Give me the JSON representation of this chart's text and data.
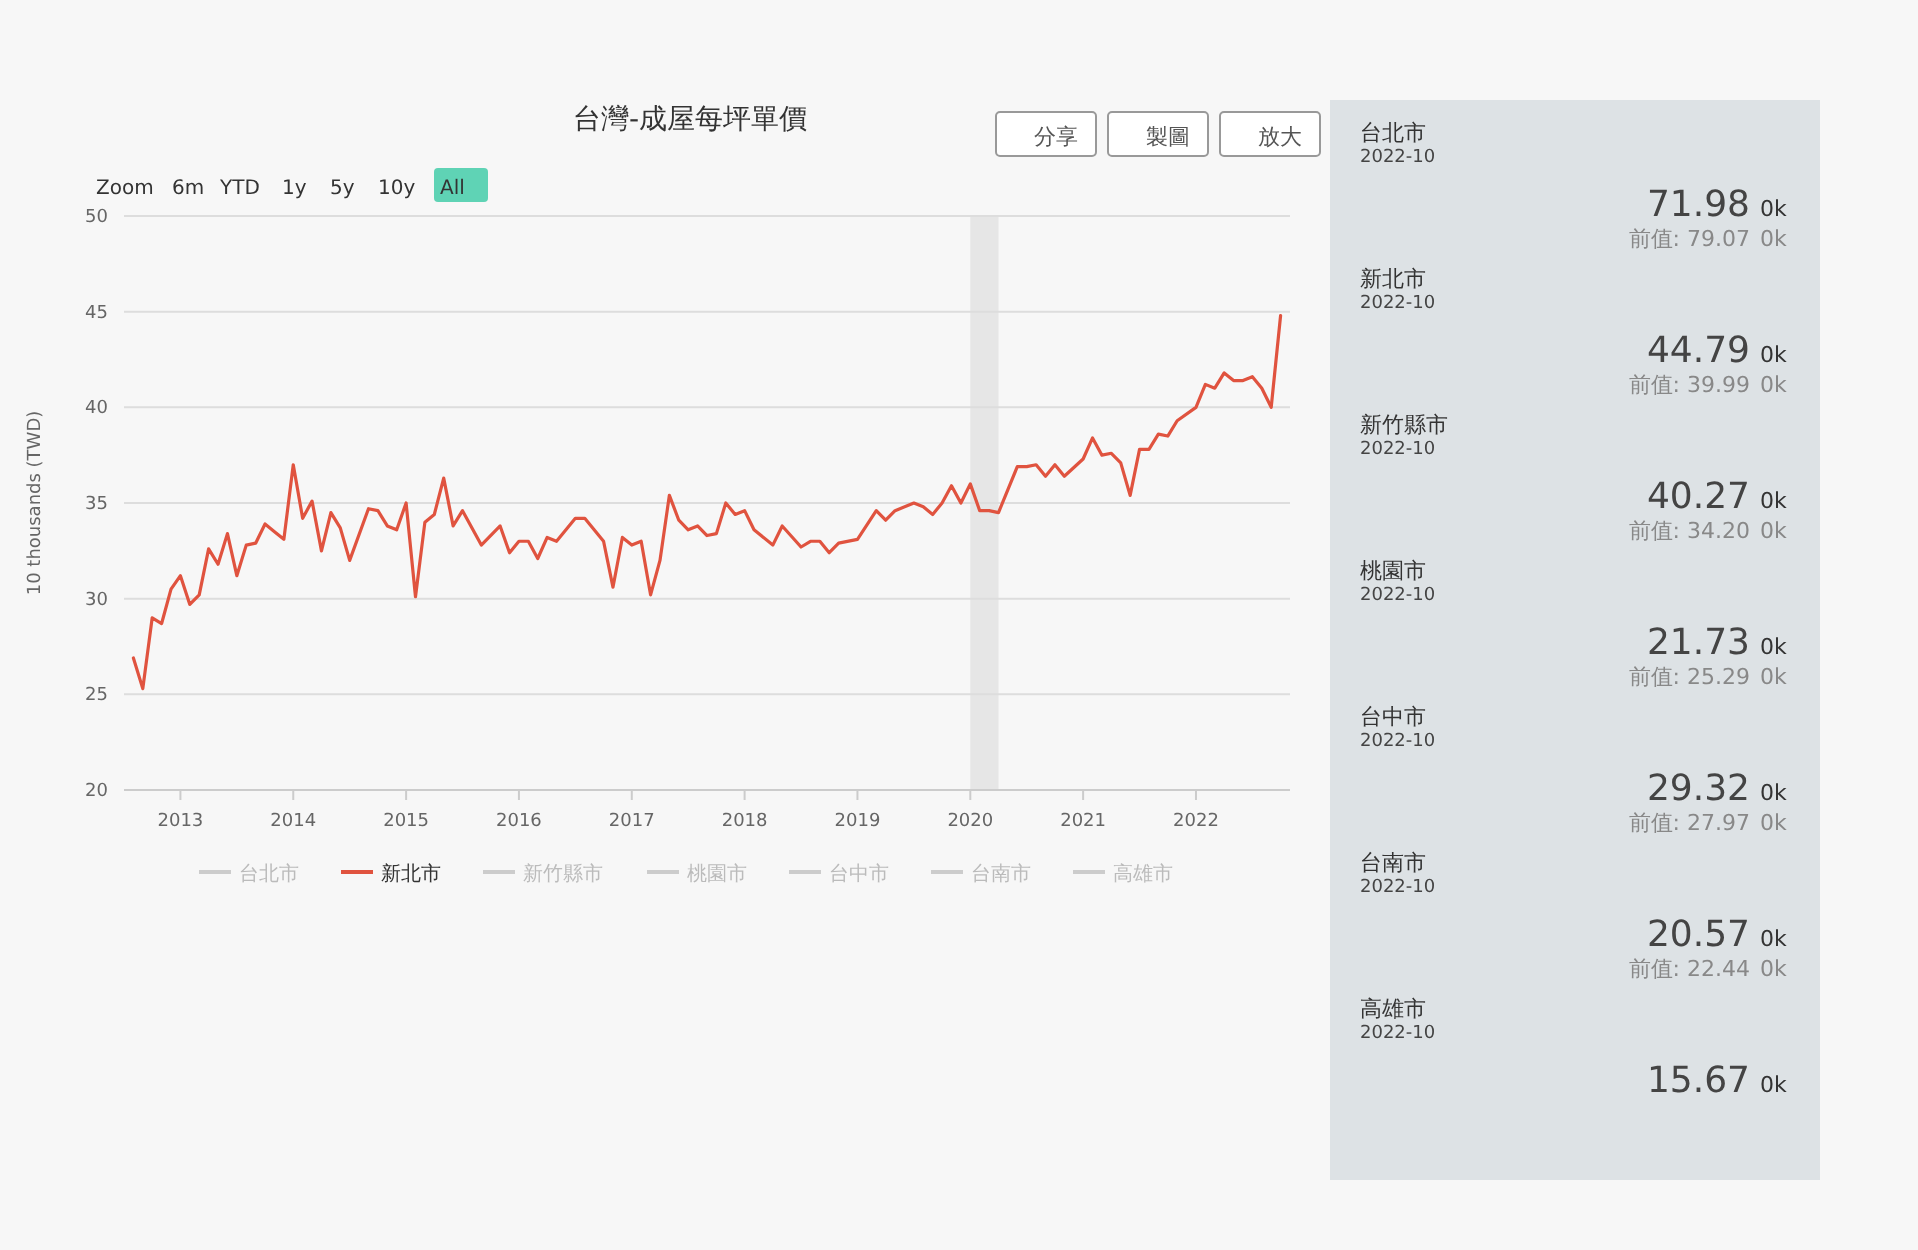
{
  "chart_data": [
    {
      "type": "line",
      "title": "台灣-成屋每坪單價",
      "ylabel": "10 thousands (TWD)",
      "annotations": [
        "Zoom",
        "6m",
        "YTD",
        "1y",
        "5y",
        "10y",
        "All",
        "分享",
        "製圖",
        "放大"
      ],
      "x": [
        "2012-08",
        "2012-09",
        "2012-10",
        "2012-11",
        "2012-12",
        "2013-01",
        "2013-02",
        "2013-03",
        "2013-04",
        "2013-05",
        "2013-06",
        "2013-07",
        "2013-08",
        "2013-09",
        "2013-10",
        "2013-11",
        "2013-12",
        "2014-01",
        "2014-02",
        "2014-03",
        "2014-04",
        "2014-05",
        "2014-06",
        "2014-07",
        "2014-09",
        "2014-10",
        "2014-11",
        "2014-12",
        "2015-01",
        "2015-02",
        "2015-03",
        "2015-04",
        "2015-05",
        "2015-06",
        "2015-07",
        "2015-09",
        "2015-11",
        "2015-12",
        "2016-01",
        "2016-02",
        "2016-03",
        "2016-04",
        "2016-05",
        "2016-07",
        "2016-08",
        "2016-10",
        "2016-11",
        "2016-12",
        "2017-01",
        "2017-02",
        "2017-03",
        "2017-04",
        "2017-05",
        "2017-06",
        "2017-07",
        "2017-08",
        "2017-09",
        "2017-10",
        "2017-11",
        "2017-12",
        "2018-01",
        "2018-02",
        "2018-04",
        "2018-05",
        "2018-07",
        "2018-08",
        "2018-09",
        "2018-10",
        "2018-11",
        "2019-01",
        "2019-03",
        "2019-04",
        "2019-05",
        "2019-07",
        "2019-08",
        "2019-09",
        "2019-10",
        "2019-11",
        "2019-12",
        "2020-01",
        "2020-02",
        "2020-03",
        "2020-04",
        "2020-06",
        "2020-07",
        "2020-08",
        "2020-09",
        "2020-10",
        "2020-11",
        "2021-01",
        "2021-02",
        "2021-03",
        "2021-04",
        "2021-05",
        "2021-06",
        "2021-07",
        "2021-08",
        "2021-09",
        "2021-10",
        "2021-11",
        "2022-01",
        "2022-02",
        "2022-03",
        "2022-04",
        "2022-05",
        "2022-06",
        "2022-07",
        "2022-08",
        "2022-09",
        "2022-10"
      ],
      "series": [
        {
          "name": "台北市",
          "color": "#cccccc",
          "values": [
            null,
            null,
            null,
            null,
            null,
            null,
            null,
            null,
            null,
            null,
            null,
            null,
            null,
            null,
            null,
            null,
            null,
            null,
            null,
            null,
            null,
            null,
            null,
            null,
            null,
            null,
            null,
            null,
            null,
            null,
            null,
            null,
            null,
            null,
            null,
            null,
            null,
            null,
            null,
            null,
            null,
            null,
            null,
            null,
            null,
            null,
            null,
            null,
            null,
            null,
            null,
            null,
            null,
            null,
            null,
            null,
            null,
            null,
            null,
            null,
            null,
            null,
            null,
            null,
            null,
            null,
            null,
            null,
            null,
            null,
            null,
            null,
            null,
            null,
            null,
            null,
            null,
            null,
            null,
            null,
            null,
            null,
            null,
            null,
            null,
            null,
            null,
            null,
            null,
            null,
            null,
            null,
            null,
            null,
            null,
            null,
            null,
            null,
            null,
            null,
            null,
            null,
            null,
            null,
            null,
            null,
            null,
            null,
            null,
            null
          ]
        },
        {
          "name": "新北市",
          "color": "#e0533f",
          "values": [
            26.9,
            25.3,
            29.0,
            28.7,
            30.5,
            31.2,
            29.7,
            30.2,
            32.6,
            31.8,
            33.4,
            31.2,
            32.8,
            32.9,
            33.9,
            33.5,
            33.1,
            37.0,
            34.2,
            35.1,
            32.5,
            34.5,
            33.7,
            32.0,
            34.7,
            34.6,
            33.8,
            33.6,
            35.0,
            30.1,
            34.0,
            34.4,
            36.3,
            33.8,
            34.6,
            32.8,
            33.8,
            32.4,
            33.0,
            33.0,
            32.1,
            33.2,
            33.0,
            34.2,
            34.2,
            33.0,
            30.6,
            33.2,
            32.8,
            33.0,
            30.2,
            32.0,
            35.4,
            34.1,
            33.6,
            33.8,
            33.3,
            33.4,
            35.0,
            34.4,
            34.6,
            33.6,
            32.8,
            33.8,
            32.7,
            33.0,
            33.0,
            32.4,
            32.9,
            33.1,
            34.6,
            34.1,
            34.6,
            35.0,
            34.8,
            34.4,
            35.0,
            35.9,
            35.0,
            36.0,
            34.6,
            34.6,
            34.5,
            36.9,
            36.9,
            37.0,
            36.4,
            37.0,
            36.4,
            37.3,
            38.4,
            37.5,
            37.6,
            37.1,
            35.4,
            37.8,
            37.8,
            38.6,
            38.5,
            39.3,
            40.0,
            41.2,
            41.0,
            41.8,
            41.4,
            41.4,
            41.6,
            41.0,
            40.0,
            44.8
          ]
        },
        {
          "name": "新竹縣市",
          "color": "#cccccc",
          "values": [
            null,
            null,
            null,
            null,
            null,
            null,
            null,
            null,
            null,
            null,
            null,
            null,
            null,
            null,
            null,
            null,
            null,
            null,
            null,
            null,
            null,
            null,
            null,
            null,
            null,
            null,
            null,
            null,
            null,
            null,
            null,
            null,
            null,
            null,
            null,
            null,
            null,
            null,
            null,
            null,
            null,
            null,
            null,
            null,
            null,
            null,
            null,
            null,
            null,
            null,
            null,
            null,
            null,
            null,
            null,
            null,
            null,
            null,
            null,
            null,
            null,
            null,
            null,
            null,
            null,
            null,
            null,
            null,
            null,
            null,
            null,
            null,
            null,
            null,
            null,
            null,
            null,
            null,
            null,
            null,
            null,
            null,
            null,
            null,
            null,
            null,
            null,
            null,
            null,
            null,
            null,
            null,
            null,
            null,
            null,
            null,
            null,
            null,
            null,
            null,
            null,
            null,
            null,
            null,
            null,
            null,
            null,
            null,
            null,
            null
          ]
        },
        {
          "name": "桃園市",
          "color": "#cccccc",
          "values": [
            null,
            null,
            null,
            null,
            null,
            null,
            null,
            null,
            null,
            null,
            null,
            null,
            null,
            null,
            null,
            null,
            null,
            null,
            null,
            null,
            null,
            null,
            null,
            null,
            null,
            null,
            null,
            null,
            null,
            null,
            null,
            null,
            null,
            null,
            null,
            null,
            null,
            null,
            null,
            null,
            null,
            null,
            null,
            null,
            null,
            null,
            null,
            null,
            null,
            null,
            null,
            null,
            null,
            null,
            null,
            null,
            null,
            null,
            null,
            null,
            null,
            null,
            null,
            null,
            null,
            null,
            null,
            null,
            null,
            null,
            null,
            null,
            null,
            null,
            null,
            null,
            null,
            null,
            null,
            null,
            null,
            null,
            null,
            null,
            null,
            null,
            null,
            null,
            null,
            null,
            null,
            null,
            null,
            null,
            null,
            null,
            null,
            null,
            null,
            null,
            null,
            null,
            null,
            null,
            null,
            null,
            null,
            null,
            null,
            null
          ]
        },
        {
          "name": "台中市",
          "color": "#cccccc",
          "values": [
            null,
            null,
            null,
            null,
            null,
            null,
            null,
            null,
            null,
            null,
            null,
            null,
            null,
            null,
            null,
            null,
            null,
            null,
            null,
            null,
            null,
            null,
            null,
            null,
            null,
            null,
            null,
            null,
            null,
            null,
            null,
            null,
            null,
            null,
            null,
            null,
            null,
            null,
            null,
            null,
            null,
            null,
            null,
            null,
            null,
            null,
            null,
            null,
            null,
            null,
            null,
            null,
            null,
            null,
            null,
            null,
            null,
            null,
            null,
            null,
            null,
            null,
            null,
            null,
            null,
            null,
            null,
            null,
            null,
            null,
            null,
            null,
            null,
            null,
            null,
            null,
            null,
            null,
            null,
            null,
            null,
            null,
            null,
            null,
            null,
            null,
            null,
            null,
            null,
            null,
            null,
            null,
            null,
            null,
            null,
            null,
            null,
            null,
            null,
            null,
            null,
            null,
            null,
            null,
            null,
            null,
            null,
            null,
            null,
            null
          ]
        },
        {
          "name": "台南市",
          "color": "#cccccc",
          "values": [
            null,
            null,
            null,
            null,
            null,
            null,
            null,
            null,
            null,
            null,
            null,
            null,
            null,
            null,
            null,
            null,
            null,
            null,
            null,
            null,
            null,
            null,
            null,
            null,
            null,
            null,
            null,
            null,
            null,
            null,
            null,
            null,
            null,
            null,
            null,
            null,
            null,
            null,
            null,
            null,
            null,
            null,
            null,
            null,
            null,
            null,
            null,
            null,
            null,
            null,
            null,
            null,
            null,
            null,
            null,
            null,
            null,
            null,
            null,
            null,
            null,
            null,
            null,
            null,
            null,
            null,
            null,
            null,
            null,
            null,
            null,
            null,
            null,
            null,
            null,
            null,
            null,
            null,
            null,
            null,
            null,
            null,
            null,
            null,
            null,
            null,
            null,
            null,
            null,
            null,
            null,
            null,
            null,
            null,
            null,
            null,
            null,
            null,
            null,
            null,
            null,
            null,
            null,
            null,
            null,
            null,
            null,
            null,
            null,
            null
          ]
        },
        {
          "name": "高雄市",
          "color": "#cccccc",
          "values": [
            null,
            null,
            null,
            null,
            null,
            null,
            null,
            null,
            null,
            null,
            null,
            null,
            null,
            null,
            null,
            null,
            null,
            null,
            null,
            null,
            null,
            null,
            null,
            null,
            null,
            null,
            null,
            null,
            null,
            null,
            null,
            null,
            null,
            null,
            null,
            null,
            null,
            null,
            null,
            null,
            null,
            null,
            null,
            null,
            null,
            null,
            null,
            null,
            null,
            null,
            null,
            null,
            null,
            null,
            null,
            null,
            null,
            null,
            null,
            null,
            null,
            null,
            null,
            null,
            null,
            null,
            null,
            null,
            null,
            null,
            null,
            null,
            null,
            null,
            null,
            null,
            null,
            null,
            null,
            null,
            null,
            null,
            null,
            null,
            null,
            null,
            null,
            null,
            null,
            null,
            null,
            null,
            null,
            null,
            null,
            null,
            null,
            null,
            null,
            null,
            null,
            null,
            null,
            null,
            null,
            null,
            null,
            null,
            null,
            null
          ]
        }
      ],
      "xlim": [
        "2012-07",
        "2022-11"
      ],
      "xticks": [
        "2013",
        "2014",
        "2015",
        "2016",
        "2017",
        "2018",
        "2019",
        "2020",
        "2021",
        "2022"
      ],
      "ylim": [
        20,
        50
      ],
      "yticks": [
        20,
        25,
        30,
        35,
        40,
        45,
        50
      ],
      "grid": "y",
      "legend": "bottom",
      "bands": [
        {
          "axis": "x",
          "from": "2020-01",
          "to": "2020-04",
          "color": "#e6e6e6"
        }
      ]
    },
    {
      "type": "other",
      "annotations": [
        "台北市",
        "2022-10",
        "71.98",
        "0k",
        "前值: 79.07",
        "0k",
        "新北市",
        "2022-10",
        "44.79",
        "0k",
        "前值: 39.99",
        "0k",
        "新竹縣市",
        "2022-10",
        "40.27",
        "0k",
        "前值: 34.20",
        "0k",
        "桃園市",
        "2022-10",
        "21.73",
        "0k",
        "前值: 25.29",
        "0k",
        "台中市",
        "2022-10",
        "29.32",
        "0k",
        "前值: 27.97",
        "0k",
        "台南市",
        "2022-10",
        "20.57",
        "0k",
        "前值: 22.44",
        "0k",
        "高雄市",
        "2022-10",
        "15.67",
        "0k"
      ]
    }
  ]
}
